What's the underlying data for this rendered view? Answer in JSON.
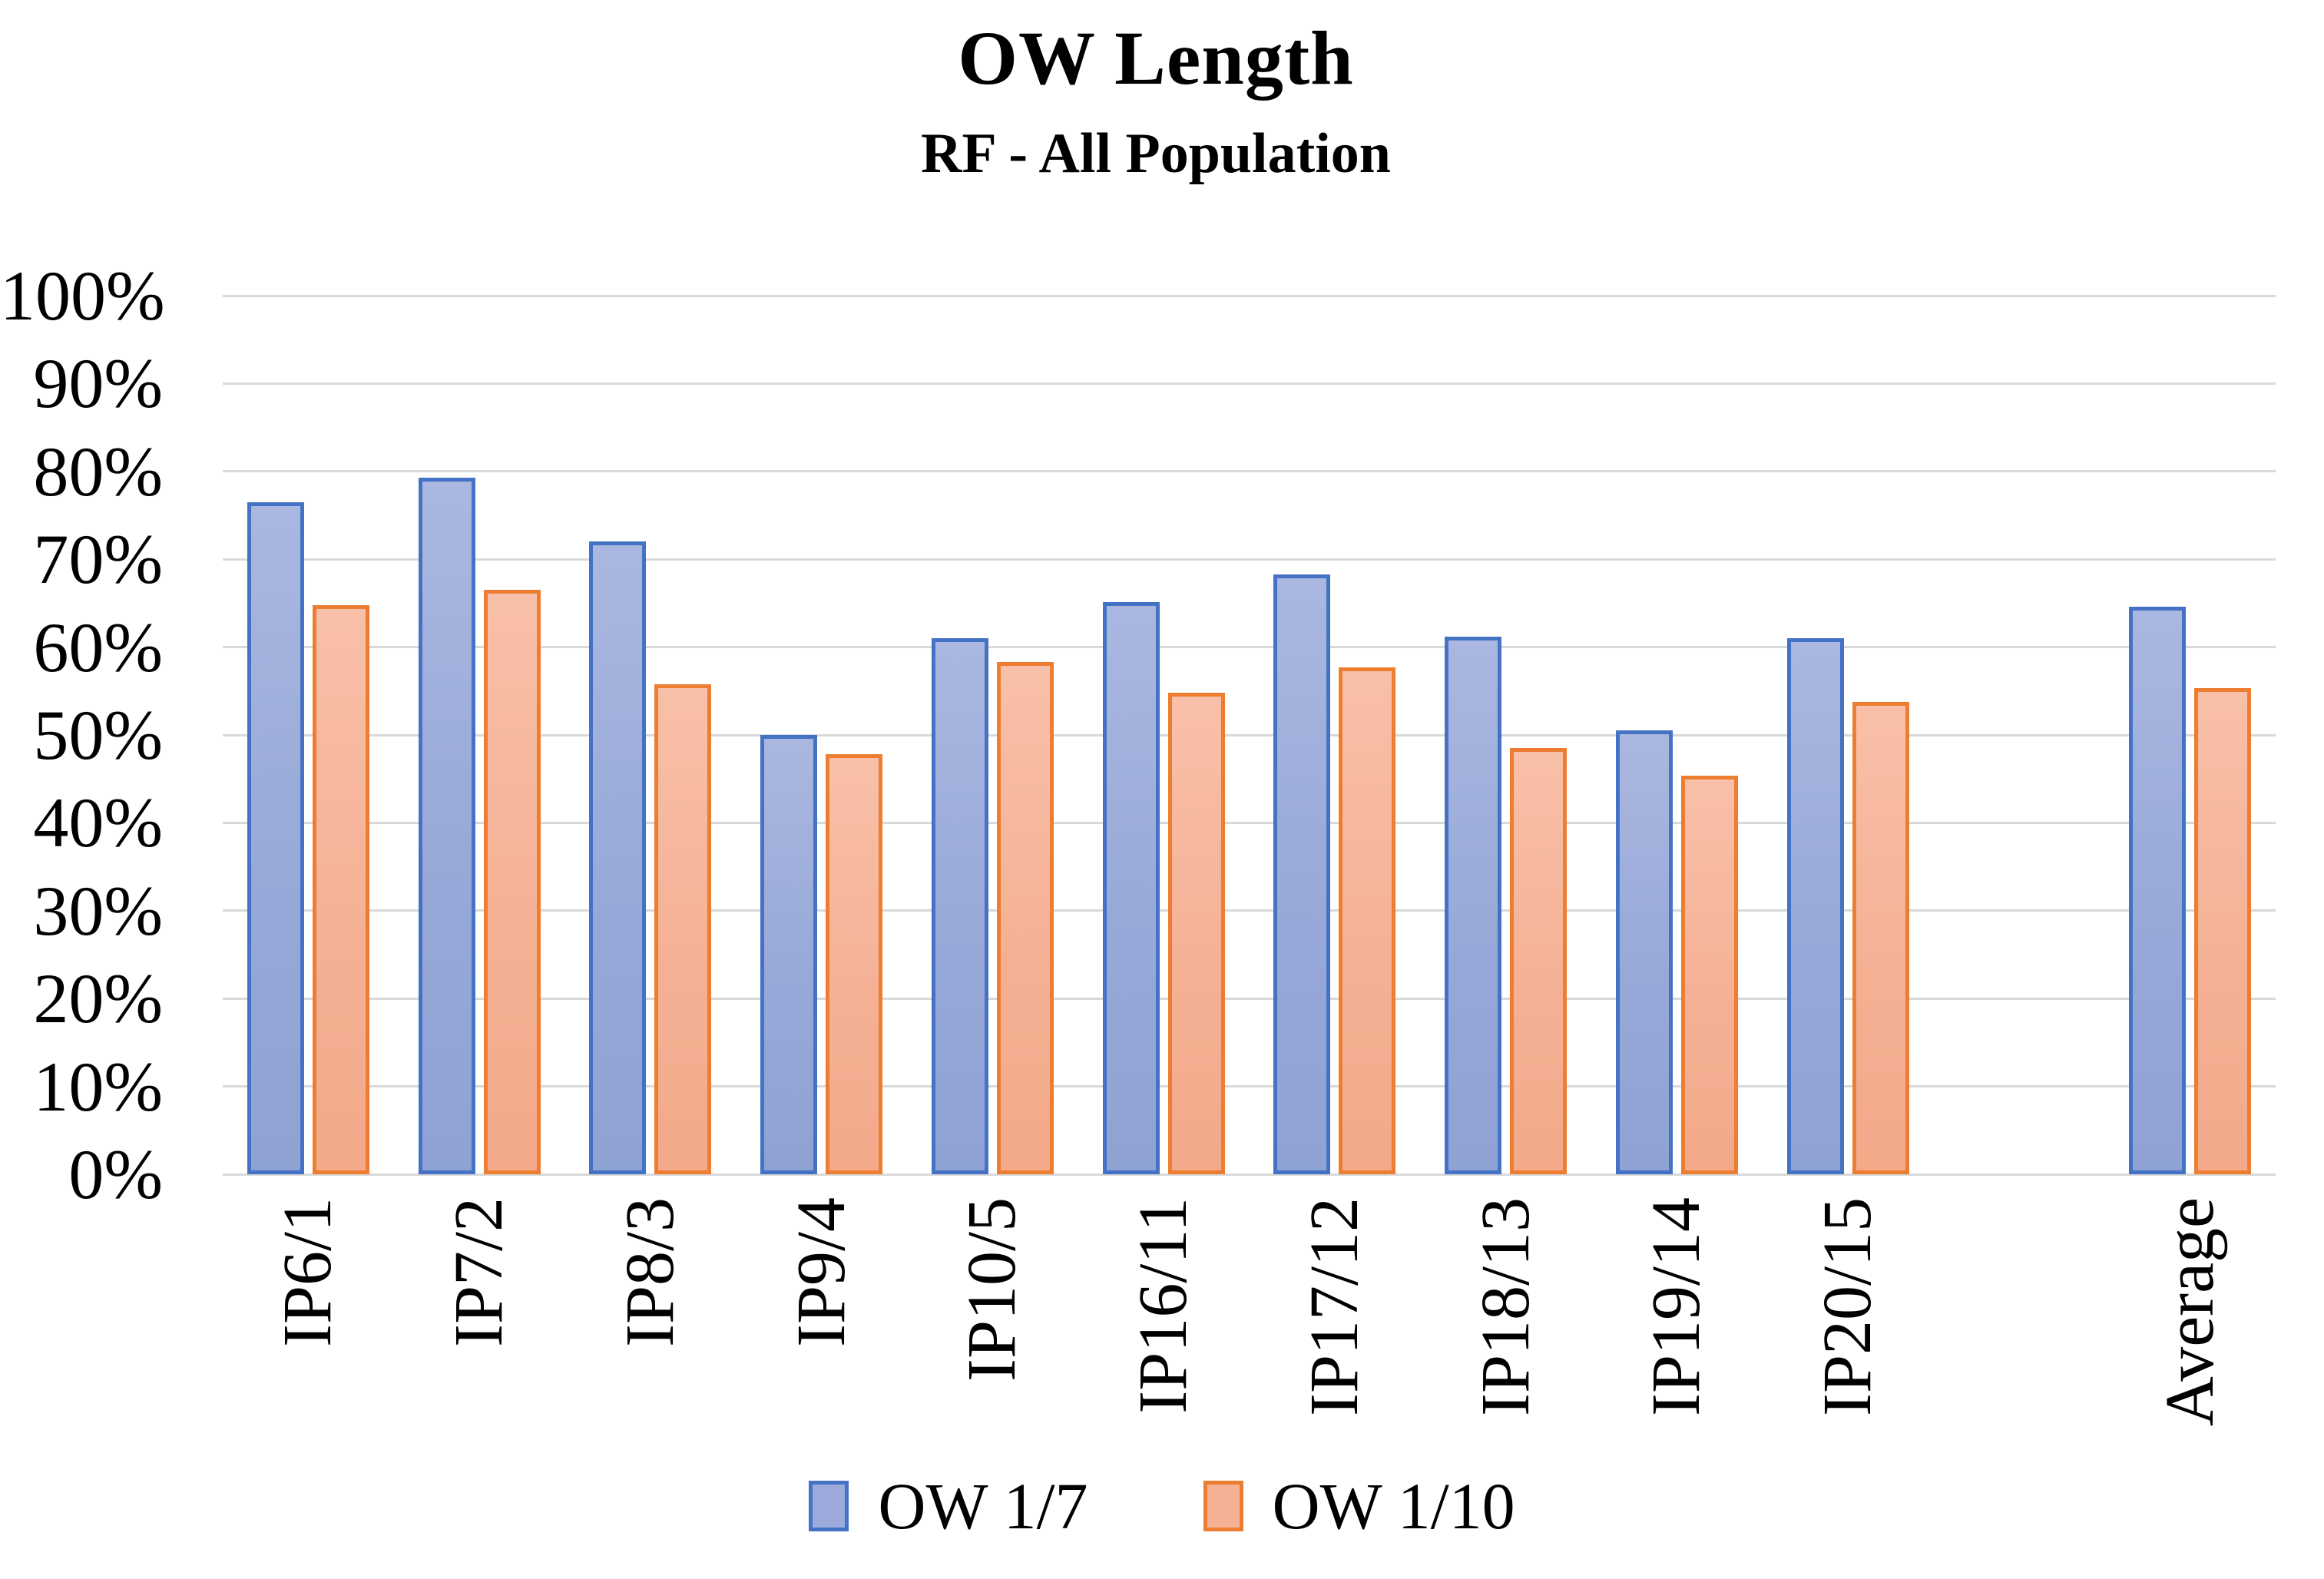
{
  "chart_data": {
    "type": "bar",
    "title": "OW Length",
    "subtitle": "RF - All Population",
    "categories": [
      "IP6/1",
      "IP7/2",
      "IP8/3",
      "IP9/4",
      "IP10/5",
      "IP16/11",
      "IP17/12",
      "IP18/13",
      "IP19/14",
      "IP20/15",
      "Average"
    ],
    "series": [
      {
        "name": "OW 1/7",
        "border_color": "#4472C4",
        "fill_color": "#9AABD8",
        "values": [
          76.5,
          79.3,
          72.0,
          50.0,
          61.0,
          65.1,
          68.3,
          61.2,
          50.5,
          61.0,
          64.6
        ]
      },
      {
        "name": "OW 1/10",
        "border_color": "#ED7D31",
        "fill_color": "#F5B195",
        "values": [
          64.8,
          66.5,
          55.8,
          47.8,
          58.3,
          54.8,
          57.7,
          48.5,
          45.4,
          53.8,
          55.3
        ]
      }
    ],
    "xlabel": "",
    "ylabel": "",
    "ylim": [
      0,
      100
    ],
    "y_tick_step": 10,
    "y_tick_labels": [
      "0%",
      "10%",
      "20%",
      "30%",
      "40%",
      "50%",
      "60%",
      "70%",
      "80%",
      "90%",
      "100%"
    ],
    "grid": true,
    "gridline_color": "#D9D9D9",
    "legend_position": "bottom",
    "average_column_separated": true
  }
}
